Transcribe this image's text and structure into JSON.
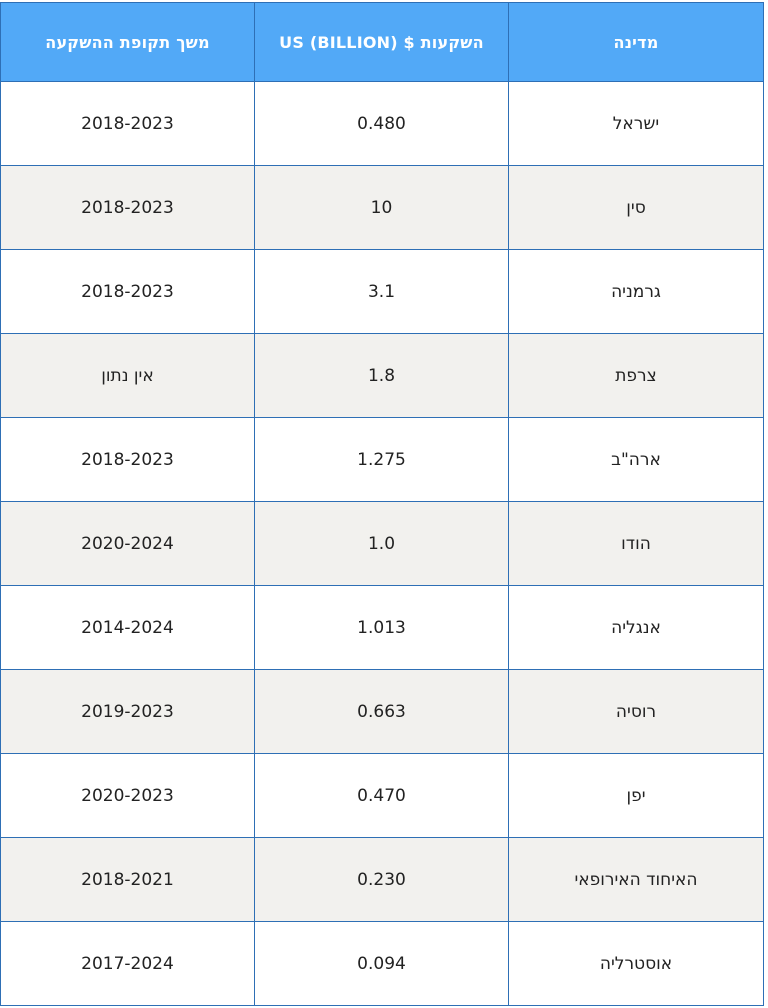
{
  "table": {
    "headers": {
      "period": "משך תקופת ההשקעה",
      "investment": "השקעות $ US (BILLION)",
      "country": "מדינה"
    },
    "rows": [
      {
        "country": "ישראל",
        "investment": "0.480",
        "period": "2018-2023"
      },
      {
        "country": "סין",
        "investment": "10",
        "period": "2018-2023"
      },
      {
        "country": "גרמניה",
        "investment": "3.1",
        "period": "2018-2023"
      },
      {
        "country": "צרפת",
        "investment": "1.8",
        "period": "אין נתון"
      },
      {
        "country": "ארה\"ב",
        "investment": "1.275",
        "period": "2018-2023"
      },
      {
        "country": "הודו",
        "investment": "1.0",
        "period": "2020-2024"
      },
      {
        "country": "אנגליה",
        "investment": "1.013",
        "period": "2014-2024"
      },
      {
        "country": "רוסיה",
        "investment": "0.663",
        "period": "2019-2023"
      },
      {
        "country": "יפן",
        "investment": "0.470",
        "period": "2020-2023"
      },
      {
        "country": "האיחוד האירופאי",
        "investment": "0.230",
        "period": "2018-2021"
      },
      {
        "country": "אוסטרליה",
        "investment": "0.094",
        "period": "2017-2024"
      }
    ]
  },
  "colors": {
    "header_bg": "#52a9f7",
    "border": "#2e6fb5",
    "stripe": "#f2f1ee"
  }
}
